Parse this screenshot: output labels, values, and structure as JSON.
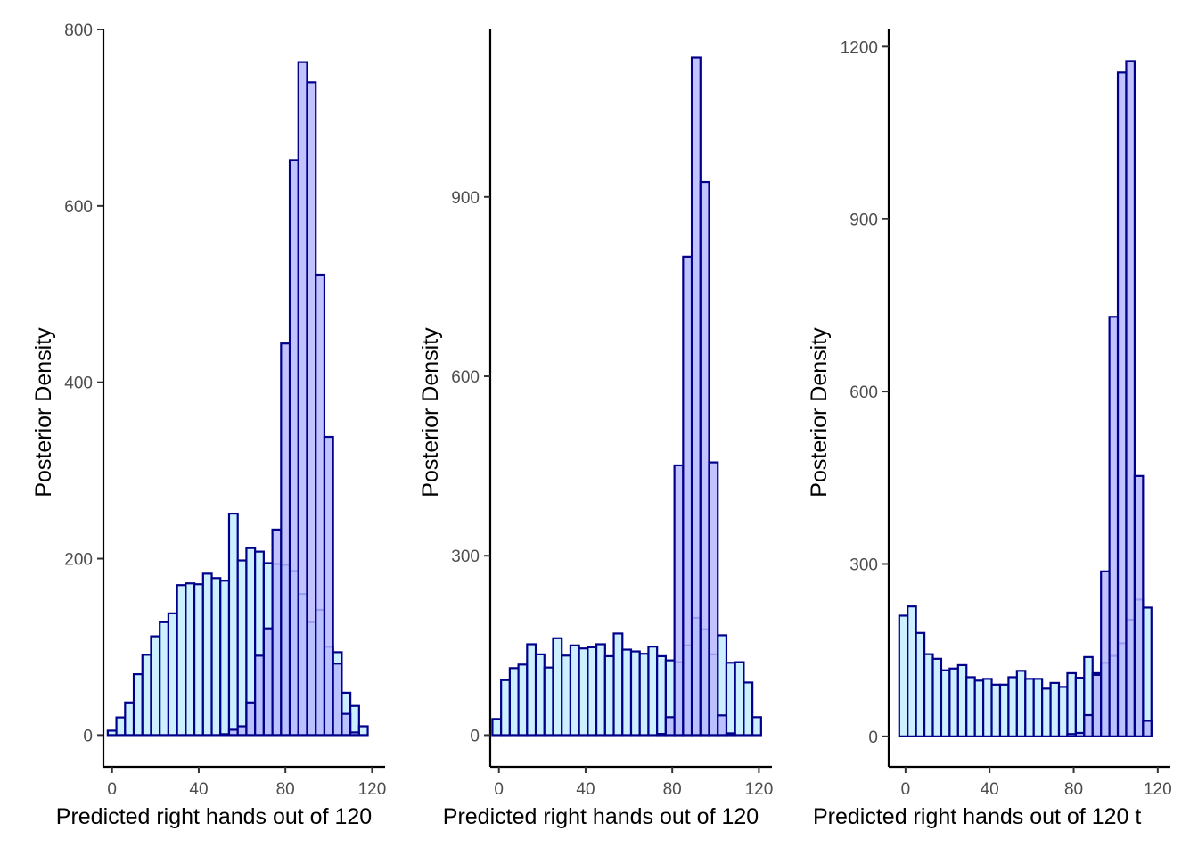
{
  "chart_data": [
    {
      "type": "bar",
      "xlabel": "Predicted right hands out of 120",
      "ylabel": "Posterior Density",
      "xticks": [
        0,
        40,
        80,
        120
      ],
      "yticks": [
        0,
        200,
        400,
        600,
        800
      ],
      "xlim": [
        -4,
        126
      ],
      "ylim": [
        -36,
        800
      ],
      "grid": false,
      "legend": "none",
      "bin_width": 4,
      "series": [
        {
          "fill": "#ccf0ff",
          "edge": "#00008b",
          "bins": [
            [
              0,
              5
            ],
            [
              4,
              20
            ],
            [
              8,
              37
            ],
            [
              12,
              69
            ],
            [
              16,
              91
            ],
            [
              20,
              112
            ],
            [
              24,
              128
            ],
            [
              28,
              138
            ],
            [
              32,
              170
            ],
            [
              36,
              172
            ],
            [
              40,
              171
            ],
            [
              44,
              183
            ],
            [
              48,
              178
            ],
            [
              52,
              175
            ],
            [
              56,
              251
            ],
            [
              60,
              198
            ],
            [
              64,
              212
            ],
            [
              68,
              208
            ],
            [
              72,
              195
            ],
            [
              76,
              194
            ],
            [
              80,
              193
            ],
            [
              84,
              186
            ],
            [
              88,
              160
            ],
            [
              92,
              128
            ],
            [
              96,
              142
            ],
            [
              100,
              100
            ],
            [
              104,
              94
            ],
            [
              108,
              48
            ],
            [
              112,
              33
            ],
            [
              116,
              10
            ]
          ]
        },
        {
          "fill": "#b7b7ff",
          "edge": "#00008b",
          "bins": [
            [
              52,
              1
            ],
            [
              56,
              6
            ],
            [
              60,
              10
            ],
            [
              64,
              37
            ],
            [
              68,
              90
            ],
            [
              72,
              121
            ],
            [
              76,
              233
            ],
            [
              80,
              444
            ],
            [
              84,
              652
            ],
            [
              88,
              763
            ],
            [
              92,
              740
            ],
            [
              96,
              522
            ],
            [
              100,
              338
            ],
            [
              104,
              81
            ],
            [
              108,
              24
            ],
            [
              112,
              3
            ]
          ]
        }
      ]
    },
    {
      "type": "bar",
      "xlabel": "Predicted right hands out of 120",
      "ylabel": "Posterior Density",
      "xticks": [
        0,
        40,
        80,
        120
      ],
      "yticks": [
        0,
        300,
        600,
        900
      ],
      "xlim": [
        -4,
        126
      ],
      "ylim": [
        -53,
        1180
      ],
      "grid": false,
      "legend": "none",
      "bin_width": 4,
      "series": [
        {
          "fill": "#ccf0ff",
          "edge": "#00008b",
          "bins": [
            [
              -1,
              27
            ],
            [
              3,
              92
            ],
            [
              7,
              112
            ],
            [
              11,
              118
            ],
            [
              15,
              152
            ],
            [
              19,
              135
            ],
            [
              23,
              113
            ],
            [
              27,
              162
            ],
            [
              31,
              133
            ],
            [
              35,
              150
            ],
            [
              39,
              145
            ],
            [
              43,
              147
            ],
            [
              47,
              152
            ],
            [
              51,
              132
            ],
            [
              55,
              170
            ],
            [
              59,
              143
            ],
            [
              63,
              140
            ],
            [
              67,
              136
            ],
            [
              71,
              148
            ],
            [
              75,
              132
            ],
            [
              79,
              125
            ],
            [
              83,
              122
            ],
            [
              87,
              150
            ],
            [
              91,
              196
            ],
            [
              95,
              177
            ],
            [
              99,
              135
            ],
            [
              103,
              167
            ],
            [
              107,
              121
            ],
            [
              111,
              122
            ],
            [
              115,
              88
            ],
            [
              119,
              30
            ]
          ]
        },
        {
          "fill": "#b7b7ff",
          "edge": "#00008b",
          "bins": [
            [
              75,
              2
            ],
            [
              79,
              30
            ],
            [
              83,
              451
            ],
            [
              87,
              800
            ],
            [
              91,
              1133
            ],
            [
              95,
              925
            ],
            [
              99,
              456
            ],
            [
              103,
              33
            ],
            [
              107,
              3
            ]
          ]
        }
      ]
    },
    {
      "type": "bar",
      "xlabel": "Predicted right hands out of 120 t",
      "ylabel": "Posterior Density",
      "xticks": [
        0,
        40,
        80,
        120
      ],
      "yticks": [
        0,
        300,
        600,
        900,
        1200
      ],
      "xlim": [
        -8,
        126
      ],
      "ylim": [
        -53,
        1230
      ],
      "grid": false,
      "legend": "none",
      "bin_width": 4,
      "series": [
        {
          "fill": "#ccf0ff",
          "edge": "#00008b",
          "bins": [
            [
              -1,
              210
            ],
            [
              3,
              226
            ],
            [
              7,
              180
            ],
            [
              11,
              143
            ],
            [
              15,
              135
            ],
            [
              19,
              115
            ],
            [
              23,
              118
            ],
            [
              27,
              124
            ],
            [
              31,
              103
            ],
            [
              35,
              97
            ],
            [
              39,
              100
            ],
            [
              43,
              90
            ],
            [
              47,
              90
            ],
            [
              51,
              103
            ],
            [
              55,
              114
            ],
            [
              59,
              100
            ],
            [
              63,
              100
            ],
            [
              67,
              83
            ],
            [
              71,
              93
            ],
            [
              75,
              86
            ],
            [
              79,
              110
            ],
            [
              83,
              102
            ],
            [
              87,
              138
            ],
            [
              91,
              110
            ],
            [
              95,
              128
            ],
            [
              99,
              140
            ],
            [
              103,
              162
            ],
            [
              107,
              203
            ],
            [
              111,
              238
            ],
            [
              115,
              224
            ]
          ]
        },
        {
          "fill": "#b7b7ff",
          "edge": "#00008b",
          "bins": [
            [
              79,
              4
            ],
            [
              83,
              6
            ],
            [
              87,
              37
            ],
            [
              91,
              107
            ],
            [
              95,
              287
            ],
            [
              99,
              730
            ],
            [
              103,
              1155
            ],
            [
              107,
              1175
            ],
            [
              111,
              453
            ],
            [
              115,
              27
            ]
          ]
        }
      ]
    }
  ]
}
